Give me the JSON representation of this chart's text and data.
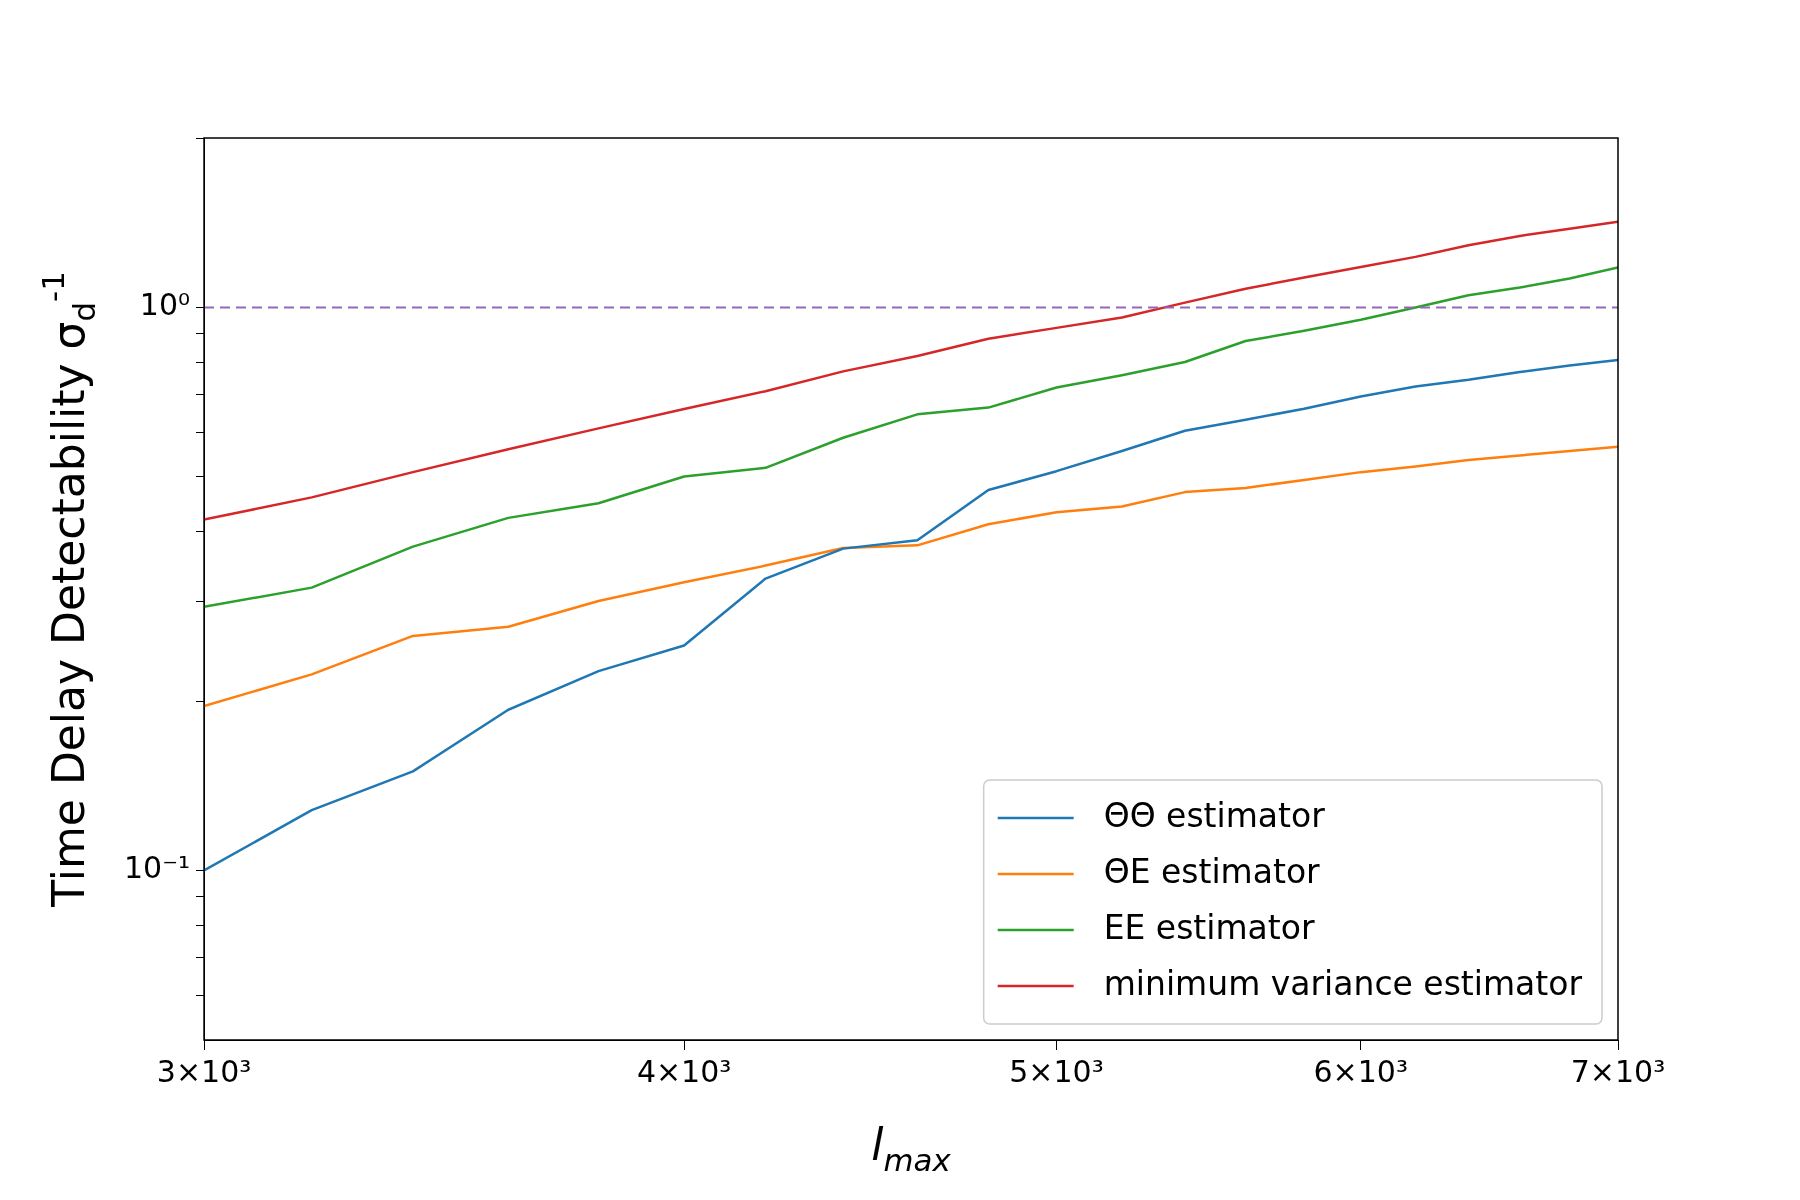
{
  "chart_data": {
    "type": "line",
    "xlabel": "l$_{max}$",
    "ylabel": "Time Delay Detectability σ$_{d}$$^{-1}$",
    "x": [
      3000,
      3200,
      3400,
      3600,
      3800,
      4000,
      4200,
      4400,
      4600,
      4800,
      5000,
      5200,
      5400,
      5600,
      5800,
      6000,
      6200,
      6400,
      6600,
      6800,
      7000
    ],
    "series": [
      {
        "name": "ΘΘ estimator",
        "color": "#1f77b4",
        "values": [
          0.1,
          0.128,
          0.15,
          0.193,
          0.226,
          0.251,
          0.33,
          0.373,
          0.386,
          0.474,
          0.512,
          0.556,
          0.604,
          0.632,
          0.661,
          0.695,
          0.724,
          0.744,
          0.768,
          0.789,
          0.807
        ]
      },
      {
        "name": "ΘE estimator",
        "color": "#ff7f0e",
        "values": [
          0.196,
          0.223,
          0.261,
          0.271,
          0.301,
          0.325,
          0.348,
          0.374,
          0.378,
          0.412,
          0.433,
          0.443,
          0.47,
          0.478,
          0.494,
          0.51,
          0.522,
          0.536,
          0.546,
          0.556,
          0.566
        ]
      },
      {
        "name": "EE estimator",
        "color": "#2ca02c",
        "values": [
          0.294,
          0.318,
          0.376,
          0.423,
          0.449,
          0.501,
          0.519,
          0.587,
          0.646,
          0.664,
          0.721,
          0.758,
          0.8,
          0.872,
          0.909,
          0.951,
          1.0,
          1.051,
          1.085,
          1.126,
          1.178
        ]
      },
      {
        "name": "minimum variance estimator",
        "color": "#d62728",
        "values": [
          0.42,
          0.46,
          0.51,
          0.56,
          0.61,
          0.66,
          0.71,
          0.77,
          0.82,
          0.88,
          0.92,
          0.96,
          1.02,
          1.08,
          1.13,
          1.18,
          1.23,
          1.29,
          1.34,
          1.38,
          1.42
        ]
      }
    ],
    "log": "xy",
    "xlim": [
      3000,
      7000
    ],
    "ylim": [
      0.05,
      2
    ],
    "xticks": [
      {
        "value": 3000,
        "label": "3×10³"
      },
      {
        "value": 4000,
        "label": "4×10³"
      },
      {
        "value": 5000,
        "label": "5×10³"
      },
      {
        "value": 6000,
        "label": "6×10³"
      },
      {
        "value": 7000,
        "label": "7×10³"
      }
    ],
    "yticks": [
      {
        "value": 0.06,
        "label": null
      },
      {
        "value": 0.07,
        "label": null
      },
      {
        "value": 0.08,
        "label": null
      },
      {
        "value": 0.09,
        "label": null
      },
      {
        "value": 0.1,
        "label": "10⁻¹"
      },
      {
        "value": 0.2,
        "label": null
      },
      {
        "value": 0.3,
        "label": null
      },
      {
        "value": 0.4,
        "label": null
      },
      {
        "value": 0.5,
        "label": null
      },
      {
        "value": 0.6,
        "label": null
      },
      {
        "value": 0.7,
        "label": null
      },
      {
        "value": 0.8,
        "label": null
      },
      {
        "value": 0.9,
        "label": null
      },
      {
        "value": 1,
        "label": "10⁰"
      },
      {
        "value": 2,
        "label": null
      }
    ],
    "ref_lines": [
      {
        "axis": "y",
        "value": 1,
        "color": "#9467bd",
        "line_style": "dashed"
      }
    ],
    "legend": "bottom right",
    "grid": false,
    "marker": "none",
    "line_style": "solid"
  }
}
